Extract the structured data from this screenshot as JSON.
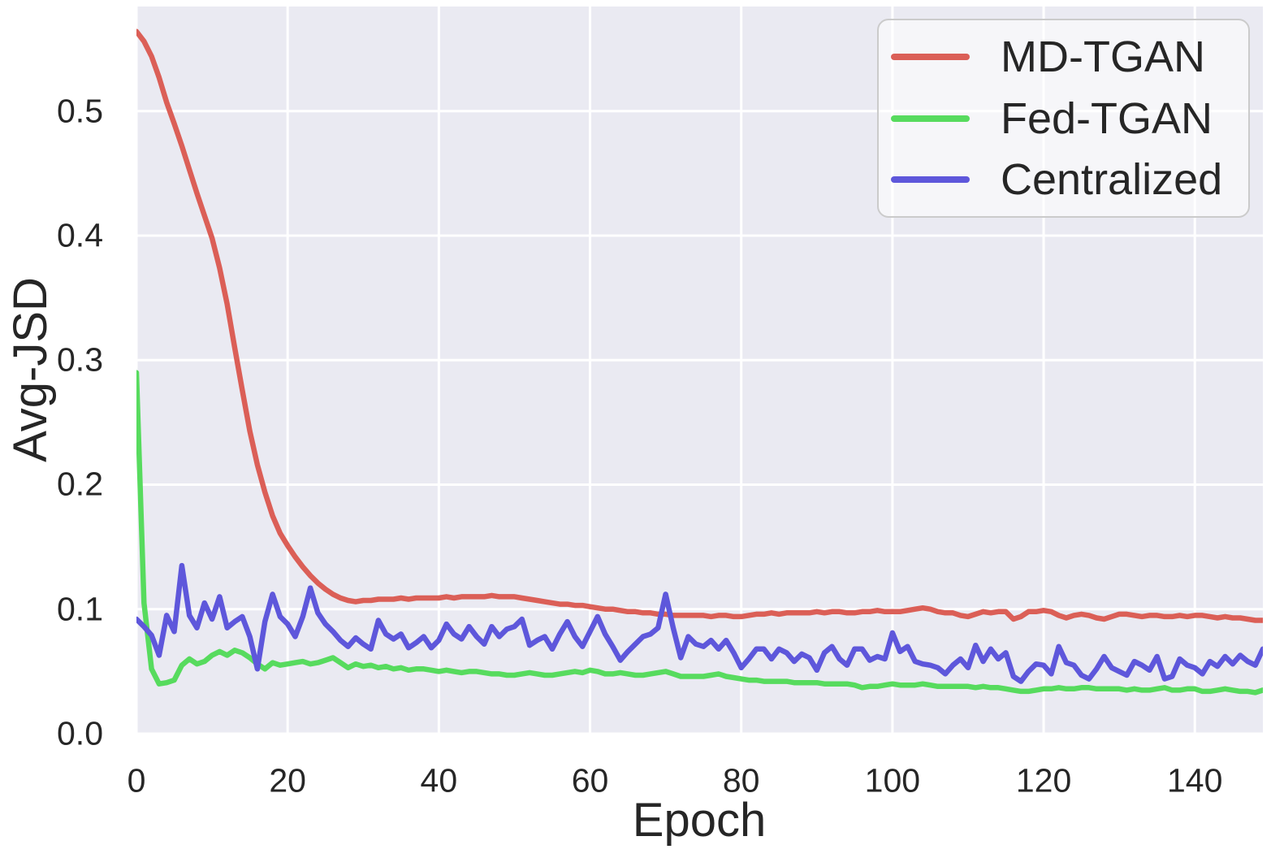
{
  "figure": {
    "background": "#ffffff",
    "plot_background": "#eaeaf2",
    "grid_color": "#ffffff",
    "text_color": "#262626",
    "legend_border_color": "#cbcbcb"
  },
  "chart_data": {
    "type": "line",
    "title": "",
    "xlabel": "Epoch",
    "ylabel": "Avg-JSD",
    "xlim": [
      0,
      149
    ],
    "ylim": [
      0,
      0.584
    ],
    "x_ticks": [
      0,
      20,
      40,
      60,
      80,
      100,
      120,
      140
    ],
    "y_ticks": [
      0.0,
      0.1,
      0.2,
      0.3,
      0.4,
      0.5
    ],
    "grid": true,
    "legend_position": "upper-right",
    "x_start": 0,
    "x_step": 1,
    "series": [
      {
        "name": "MD-TGAN",
        "color": "#db5f57",
        "values": [
          0.564,
          0.556,
          0.544,
          0.527,
          0.507,
          0.49,
          0.472,
          0.453,
          0.434,
          0.416,
          0.398,
          0.374,
          0.345,
          0.31,
          0.276,
          0.243,
          0.216,
          0.194,
          0.175,
          0.161,
          0.151,
          0.142,
          0.134,
          0.127,
          0.121,
          0.116,
          0.112,
          0.109,
          0.107,
          0.106,
          0.107,
          0.107,
          0.108,
          0.108,
          0.108,
          0.109,
          0.108,
          0.109,
          0.109,
          0.109,
          0.109,
          0.11,
          0.109,
          0.11,
          0.11,
          0.11,
          0.11,
          0.111,
          0.11,
          0.11,
          0.11,
          0.109,
          0.108,
          0.107,
          0.106,
          0.105,
          0.104,
          0.104,
          0.103,
          0.103,
          0.102,
          0.101,
          0.1,
          0.1,
          0.099,
          0.098,
          0.098,
          0.097,
          0.097,
          0.096,
          0.096,
          0.095,
          0.095,
          0.095,
          0.095,
          0.095,
          0.094,
          0.095,
          0.095,
          0.094,
          0.094,
          0.095,
          0.096,
          0.096,
          0.097,
          0.096,
          0.097,
          0.097,
          0.097,
          0.097,
          0.098,
          0.097,
          0.098,
          0.098,
          0.097,
          0.097,
          0.098,
          0.098,
          0.099,
          0.098,
          0.098,
          0.098,
          0.099,
          0.1,
          0.101,
          0.1,
          0.098,
          0.097,
          0.097,
          0.095,
          0.094,
          0.096,
          0.098,
          0.097,
          0.098,
          0.098,
          0.092,
          0.094,
          0.098,
          0.098,
          0.099,
          0.098,
          0.095,
          0.093,
          0.095,
          0.096,
          0.095,
          0.093,
          0.092,
          0.094,
          0.096,
          0.096,
          0.095,
          0.094,
          0.095,
          0.095,
          0.094,
          0.094,
          0.095,
          0.094,
          0.095,
          0.095,
          0.094,
          0.093,
          0.094,
          0.093,
          0.093,
          0.092,
          0.091,
          0.091
        ]
      },
      {
        "name": "Fed-TGAN",
        "color": "#57db5e",
        "values": [
          0.29,
          0.105,
          0.052,
          0.04,
          0.041,
          0.043,
          0.055,
          0.06,
          0.056,
          0.058,
          0.063,
          0.066,
          0.063,
          0.067,
          0.065,
          0.061,
          0.056,
          0.052,
          0.057,
          0.055,
          0.056,
          0.057,
          0.058,
          0.056,
          0.057,
          0.059,
          0.061,
          0.057,
          0.053,
          0.056,
          0.054,
          0.055,
          0.053,
          0.054,
          0.052,
          0.053,
          0.051,
          0.052,
          0.052,
          0.051,
          0.05,
          0.051,
          0.05,
          0.049,
          0.05,
          0.05,
          0.049,
          0.048,
          0.048,
          0.047,
          0.047,
          0.048,
          0.049,
          0.048,
          0.047,
          0.047,
          0.048,
          0.049,
          0.05,
          0.049,
          0.051,
          0.05,
          0.048,
          0.048,
          0.049,
          0.048,
          0.047,
          0.047,
          0.048,
          0.049,
          0.05,
          0.048,
          0.046,
          0.046,
          0.046,
          0.046,
          0.047,
          0.048,
          0.046,
          0.045,
          0.044,
          0.043,
          0.043,
          0.042,
          0.042,
          0.042,
          0.042,
          0.041,
          0.041,
          0.041,
          0.041,
          0.04,
          0.04,
          0.04,
          0.04,
          0.039,
          0.037,
          0.038,
          0.038,
          0.039,
          0.04,
          0.039,
          0.039,
          0.039,
          0.04,
          0.039,
          0.038,
          0.038,
          0.038,
          0.038,
          0.038,
          0.037,
          0.038,
          0.037,
          0.037,
          0.036,
          0.035,
          0.034,
          0.034,
          0.035,
          0.036,
          0.036,
          0.037,
          0.036,
          0.036,
          0.037,
          0.037,
          0.036,
          0.036,
          0.036,
          0.036,
          0.035,
          0.036,
          0.035,
          0.035,
          0.036,
          0.037,
          0.035,
          0.035,
          0.036,
          0.036,
          0.034,
          0.034,
          0.035,
          0.036,
          0.035,
          0.034,
          0.034,
          0.033,
          0.035
        ]
      },
      {
        "name": "Centralized",
        "color": "#5e57db",
        "values": [
          0.092,
          0.086,
          0.079,
          0.063,
          0.095,
          0.082,
          0.135,
          0.095,
          0.085,
          0.105,
          0.092,
          0.11,
          0.085,
          0.09,
          0.094,
          0.078,
          0.052,
          0.09,
          0.112,
          0.094,
          0.088,
          0.078,
          0.094,
          0.117,
          0.097,
          0.088,
          0.082,
          0.075,
          0.07,
          0.077,
          0.072,
          0.068,
          0.091,
          0.08,
          0.076,
          0.08,
          0.069,
          0.073,
          0.078,
          0.069,
          0.075,
          0.088,
          0.08,
          0.076,
          0.086,
          0.078,
          0.072,
          0.086,
          0.078,
          0.084,
          0.086,
          0.092,
          0.071,
          0.075,
          0.078,
          0.068,
          0.08,
          0.09,
          0.078,
          0.07,
          0.082,
          0.094,
          0.08,
          0.07,
          0.059,
          0.066,
          0.072,
          0.078,
          0.08,
          0.085,
          0.112,
          0.085,
          0.061,
          0.078,
          0.072,
          0.07,
          0.075,
          0.068,
          0.075,
          0.065,
          0.053,
          0.06,
          0.068,
          0.068,
          0.06,
          0.068,
          0.065,
          0.058,
          0.064,
          0.061,
          0.051,
          0.065,
          0.07,
          0.06,
          0.055,
          0.068,
          0.068,
          0.059,
          0.062,
          0.06,
          0.081,
          0.066,
          0.07,
          0.058,
          0.056,
          0.055,
          0.053,
          0.048,
          0.055,
          0.06,
          0.053,
          0.071,
          0.058,
          0.068,
          0.06,
          0.065,
          0.046,
          0.042,
          0.05,
          0.056,
          0.055,
          0.048,
          0.07,
          0.057,
          0.055,
          0.047,
          0.044,
          0.052,
          0.062,
          0.053,
          0.05,
          0.047,
          0.058,
          0.055,
          0.051,
          0.062,
          0.044,
          0.046,
          0.06,
          0.055,
          0.053,
          0.048,
          0.058,
          0.054,
          0.062,
          0.056,
          0.063,
          0.058,
          0.055,
          0.068
        ]
      }
    ]
  }
}
